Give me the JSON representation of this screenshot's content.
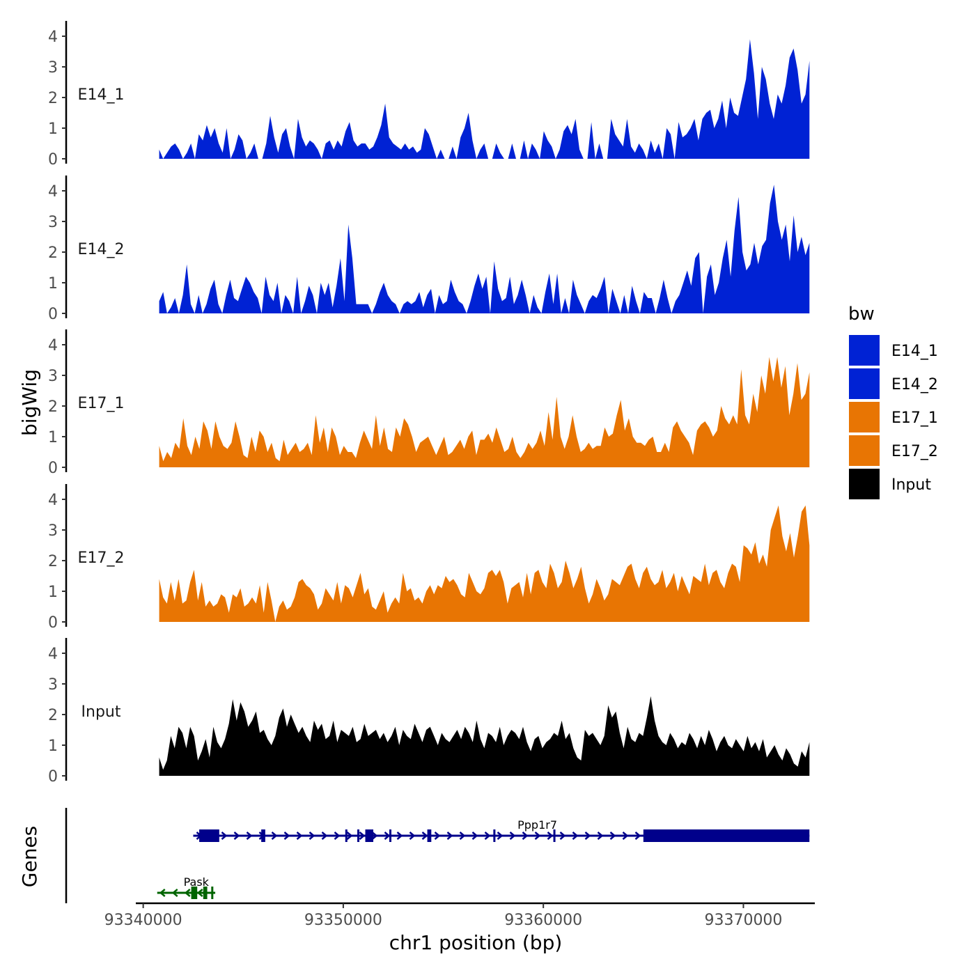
{
  "chart_data": {
    "type": "area",
    "x_range": [
      93340500,
      93373500
    ],
    "xlabel": "chr1 position (bp)",
    "ylabel": "bigWig",
    "x_ticks": [
      93340000,
      93350000,
      93360000,
      93370000
    ],
    "x_tick_labels": [
      "93340000",
      "93350000",
      "93360000",
      "93370000"
    ],
    "ylim": [
      0,
      4.5
    ],
    "y_ticks": [
      0,
      1,
      2,
      3,
      4
    ],
    "y_tick_labels": [
      "0",
      "1",
      "2",
      "3",
      "4"
    ],
    "genes_panel_label": "Genes",
    "legend": {
      "title": "bw",
      "entries": [
        {
          "label": "E14_1",
          "color": "#0022D4"
        },
        {
          "label": "E14_2",
          "color": "#0022D4"
        },
        {
          "label": "E17_1",
          "color": "#E87503"
        },
        {
          "label": "E17_2",
          "color": "#E87503"
        },
        {
          "label": "Input",
          "color": "#000000"
        }
      ]
    },
    "tracks": [
      {
        "name": "E14_1",
        "color": "#0022D4",
        "x_start": 93340800,
        "x_end": 93373300,
        "values": [
          0.3,
          0.0,
          0.2,
          0.4,
          0.5,
          0.3,
          0.0,
          0.2,
          0.5,
          0.0,
          0.8,
          0.6,
          1.1,
          0.7,
          1.0,
          0.5,
          0.2,
          1.0,
          0.0,
          0.3,
          0.8,
          0.6,
          0.0,
          0.2,
          0.5,
          0.0,
          0.0,
          0.5,
          1.4,
          0.7,
          0.2,
          0.8,
          1.0,
          0.4,
          0.0,
          1.3,
          0.7,
          0.4,
          0.6,
          0.5,
          0.3,
          0.0,
          0.5,
          0.6,
          0.3,
          0.6,
          0.4,
          0.9,
          1.2,
          0.6,
          0.4,
          0.5,
          0.5,
          0.3,
          0.4,
          0.7,
          1.1,
          1.8,
          0.7,
          0.5,
          0.4,
          0.3,
          0.5,
          0.3,
          0.4,
          0.2,
          0.3,
          1.0,
          0.8,
          0.4,
          0.0,
          0.3,
          0.0,
          0.0,
          0.4,
          0.0,
          0.7,
          1.0,
          1.5,
          0.6,
          0.0,
          0.3,
          0.5,
          0.0,
          0.0,
          0.5,
          0.2,
          0.0,
          0.0,
          0.5,
          0.0,
          0.0,
          0.6,
          0.0,
          0.5,
          0.3,
          0.0,
          0.9,
          0.6,
          0.4,
          0.0,
          0.3,
          0.9,
          1.1,
          0.8,
          1.3,
          0.3,
          0.0,
          0.0,
          1.2,
          0.0,
          0.5,
          0.0,
          0.0,
          1.3,
          0.8,
          0.6,
          0.4,
          1.3,
          0.4,
          0.2,
          0.5,
          0.3,
          0.0,
          0.6,
          0.2,
          0.5,
          0.0,
          1.0,
          0.8,
          0.0,
          1.2,
          0.7,
          0.8,
          1.0,
          1.3,
          0.6,
          1.3,
          1.5,
          1.6,
          1.0,
          1.3,
          1.9,
          1.0,
          2.0,
          1.5,
          1.4,
          2.0,
          2.6,
          3.9,
          2.8,
          1.3,
          3.0,
          2.6,
          1.8,
          1.3,
          2.1,
          1.8,
          2.4,
          3.3,
          3.6,
          2.9,
          1.8,
          2.1,
          3.2
        ]
      },
      {
        "name": "E14_2",
        "color": "#0022D4",
        "x_start": 93340800,
        "x_end": 93373300,
        "values": [
          0.4,
          0.7,
          0.0,
          0.2,
          0.5,
          0.0,
          0.6,
          1.6,
          0.3,
          0.0,
          0.6,
          0.0,
          0.3,
          0.8,
          1.1,
          0.3,
          0.0,
          0.6,
          1.1,
          0.5,
          0.4,
          0.8,
          1.2,
          1.0,
          0.7,
          0.5,
          0.0,
          1.2,
          0.6,
          0.4,
          1.0,
          0.0,
          0.6,
          0.4,
          0.0,
          1.2,
          0.0,
          0.4,
          0.9,
          0.6,
          0.0,
          1.0,
          0.6,
          1.0,
          0.2,
          0.9,
          1.8,
          0.4,
          2.9,
          1.8,
          0.3,
          0.3,
          0.3,
          0.3,
          0.0,
          0.3,
          0.7,
          1.0,
          0.6,
          0.4,
          0.3,
          0.0,
          0.3,
          0.4,
          0.3,
          0.4,
          0.7,
          0.2,
          0.6,
          0.8,
          0.0,
          0.6,
          0.3,
          0.4,
          1.1,
          0.7,
          0.4,
          0.3,
          0.0,
          0.4,
          0.9,
          1.3,
          0.8,
          1.2,
          0.0,
          1.7,
          0.8,
          0.4,
          0.5,
          1.2,
          0.3,
          0.6,
          1.1,
          0.6,
          0.0,
          0.6,
          0.2,
          0.0,
          0.7,
          1.3,
          0.3,
          1.3,
          0.0,
          0.5,
          0.0,
          1.1,
          0.6,
          0.3,
          0.0,
          0.4,
          0.6,
          0.5,
          0.8,
          1.2,
          0.0,
          0.8,
          0.4,
          0.0,
          0.6,
          0.0,
          0.9,
          0.4,
          0.0,
          0.7,
          0.5,
          0.5,
          0.0,
          0.5,
          1.1,
          0.5,
          0.0,
          0.4,
          0.6,
          1.0,
          1.4,
          0.9,
          1.8,
          2.0,
          0.0,
          1.2,
          1.6,
          0.6,
          1.0,
          1.8,
          2.4,
          1.2,
          2.7,
          3.8,
          2.0,
          1.4,
          1.6,
          2.3,
          1.6,
          2.2,
          2.4,
          3.6,
          4.2,
          3.0,
          2.4,
          2.9,
          1.7,
          3.2,
          2.0,
          2.5,
          1.9,
          2.3
        ]
      },
      {
        "name": "E17_1",
        "color": "#E87503",
        "x_start": 93340800,
        "x_end": 93373300,
        "values": [
          0.7,
          0.2,
          0.5,
          0.3,
          0.8,
          0.6,
          1.6,
          0.7,
          0.4,
          1.0,
          0.6,
          1.5,
          1.2,
          0.6,
          1.5,
          1.0,
          0.7,
          0.6,
          0.8,
          1.5,
          1.0,
          0.4,
          0.3,
          1.0,
          0.5,
          1.2,
          1.0,
          0.5,
          0.8,
          0.3,
          0.2,
          0.9,
          0.4,
          0.6,
          0.8,
          0.5,
          0.6,
          0.8,
          0.4,
          1.7,
          0.8,
          1.3,
          0.5,
          1.3,
          1.0,
          0.4,
          0.7,
          0.5,
          0.5,
          0.3,
          0.8,
          1.2,
          0.9,
          0.6,
          1.7,
          0.7,
          1.3,
          0.6,
          0.5,
          1.3,
          1.0,
          1.6,
          1.4,
          1.0,
          0.5,
          0.8,
          0.9,
          1.0,
          0.7,
          0.4,
          0.7,
          1.0,
          0.4,
          0.5,
          0.7,
          0.9,
          0.6,
          1.0,
          1.2,
          0.4,
          0.9,
          0.9,
          1.1,
          0.8,
          1.3,
          0.9,
          0.5,
          0.6,
          1.0,
          0.5,
          0.3,
          0.5,
          0.8,
          0.6,
          0.8,
          1.2,
          0.7,
          1.8,
          0.9,
          2.3,
          1.0,
          0.6,
          1.0,
          1.7,
          1.0,
          0.5,
          0.6,
          0.8,
          0.6,
          0.7,
          0.7,
          1.3,
          1.0,
          1.1,
          1.7,
          2.2,
          1.2,
          1.6,
          1.0,
          0.8,
          0.8,
          0.7,
          0.9,
          1.0,
          0.5,
          0.5,
          0.8,
          0.5,
          1.3,
          1.5,
          1.2,
          1.0,
          0.8,
          0.4,
          1.2,
          1.4,
          1.5,
          1.3,
          1.0,
          1.2,
          2.0,
          1.6,
          1.4,
          1.7,
          1.4,
          3.2,
          1.7,
          1.4,
          2.4,
          1.8,
          3.0,
          2.4,
          3.6,
          2.8,
          3.6,
          2.6,
          3.3,
          1.7,
          2.4,
          3.4,
          2.2,
          2.4,
          3.1
        ]
      },
      {
        "name": "E17_2",
        "color": "#E87503",
        "x_start": 93340800,
        "x_end": 93373300,
        "values": [
          1.4,
          0.8,
          0.6,
          1.3,
          0.7,
          1.4,
          0.6,
          0.7,
          1.3,
          1.7,
          0.7,
          1.3,
          0.5,
          0.7,
          0.5,
          0.6,
          0.9,
          0.8,
          0.3,
          0.9,
          0.8,
          1.1,
          0.5,
          0.6,
          0.8,
          0.6,
          1.2,
          0.3,
          1.3,
          0.7,
          0.0,
          0.5,
          0.7,
          0.4,
          0.5,
          0.8,
          1.3,
          1.4,
          1.2,
          1.1,
          0.9,
          0.4,
          0.6,
          1.1,
          0.9,
          0.7,
          1.3,
          0.6,
          1.2,
          1.1,
          0.8,
          1.2,
          1.6,
          0.9,
          1.1,
          0.5,
          0.4,
          0.7,
          1.0,
          0.3,
          0.6,
          0.8,
          0.6,
          1.6,
          1.0,
          1.1,
          0.7,
          0.8,
          0.6,
          1.0,
          1.2,
          0.9,
          1.2,
          1.1,
          1.5,
          1.3,
          1.4,
          1.2,
          0.9,
          0.8,
          1.6,
          1.3,
          1.0,
          0.9,
          1.1,
          1.6,
          1.7,
          1.5,
          1.7,
          1.3,
          0.6,
          1.1,
          1.2,
          1.3,
          0.8,
          1.6,
          0.9,
          1.6,
          1.7,
          1.3,
          1.1,
          1.9,
          1.6,
          1.1,
          1.3,
          2.0,
          1.6,
          1.1,
          1.4,
          1.8,
          1.1,
          0.6,
          0.9,
          1.4,
          1.1,
          0.7,
          0.9,
          1.4,
          1.3,
          1.2,
          1.5,
          1.8,
          1.9,
          1.4,
          1.1,
          1.6,
          1.8,
          1.4,
          1.2,
          1.3,
          1.7,
          1.1,
          1.3,
          1.6,
          1.0,
          1.5,
          1.2,
          0.9,
          1.5,
          1.4,
          1.3,
          1.9,
          1.2,
          1.6,
          1.7,
          1.3,
          1.1,
          1.6,
          1.9,
          1.8,
          1.3,
          2.5,
          2.4,
          2.2,
          2.6,
          1.9,
          2.2,
          1.8,
          3.0,
          3.4,
          3.8,
          2.8,
          2.3,
          2.9,
          2.1,
          2.8,
          3.6,
          3.8,
          2.5
        ]
      },
      {
        "name": "Input",
        "color": "#000000",
        "x_start": 93340800,
        "x_end": 93373300,
        "values": [
          0.6,
          0.2,
          0.5,
          1.3,
          0.9,
          1.6,
          1.4,
          0.9,
          1.6,
          1.3,
          0.5,
          0.8,
          1.2,
          0.6,
          1.6,
          1.1,
          0.9,
          1.2,
          1.7,
          2.5,
          1.8,
          2.4,
          2.1,
          1.6,
          1.8,
          2.1,
          1.4,
          1.5,
          1.2,
          1.0,
          1.3,
          1.9,
          2.2,
          1.6,
          2.0,
          1.7,
          1.4,
          1.6,
          1.3,
          1.1,
          1.8,
          1.5,
          1.7,
          1.2,
          1.3,
          1.8,
          1.1,
          1.5,
          1.4,
          1.3,
          1.6,
          1.1,
          1.2,
          1.7,
          1.3,
          1.4,
          1.5,
          1.2,
          1.4,
          1.1,
          1.3,
          1.6,
          1.0,
          1.5,
          1.3,
          1.2,
          1.7,
          1.4,
          1.1,
          1.5,
          1.6,
          1.3,
          1.0,
          1.4,
          1.2,
          1.1,
          1.3,
          1.5,
          1.2,
          1.6,
          1.4,
          1.1,
          1.8,
          1.2,
          0.9,
          1.4,
          1.3,
          1.1,
          1.6,
          1.0,
          1.3,
          1.5,
          1.4,
          1.2,
          1.6,
          1.1,
          0.8,
          1.2,
          1.3,
          0.9,
          1.1,
          1.2,
          1.4,
          1.3,
          1.8,
          1.2,
          1.4,
          0.9,
          0.6,
          0.5,
          1.5,
          1.3,
          1.4,
          1.2,
          1.0,
          1.3,
          2.3,
          1.9,
          2.1,
          1.4,
          0.9,
          1.6,
          1.2,
          1.1,
          1.4,
          1.3,
          1.9,
          2.6,
          1.8,
          1.3,
          1.1,
          1.0,
          1.4,
          1.2,
          0.9,
          1.1,
          1.0,
          1.4,
          1.2,
          0.9,
          1.3,
          1.0,
          1.5,
          1.2,
          0.8,
          1.1,
          1.3,
          1.0,
          0.9,
          1.2,
          1.0,
          0.8,
          1.3,
          0.9,
          1.1,
          0.8,
          1.2,
          0.6,
          0.8,
          1.0,
          0.7,
          0.5,
          0.9,
          0.7,
          0.4,
          0.3,
          0.8,
          0.6,
          1.1
        ]
      }
    ],
    "genes": [
      {
        "name": "Ppp1r7",
        "strand": "+",
        "color": "#00008B",
        "start": 93342500,
        "end": 93373300,
        "exons": [
          [
            93342800,
            93343800
          ],
          [
            93345900,
            93346100
          ],
          [
            93350100,
            93350200
          ],
          [
            93350700,
            93350800
          ],
          [
            93351100,
            93351500
          ],
          [
            93352300,
            93352400
          ],
          [
            93354200,
            93354400
          ],
          [
            93357500,
            93357600
          ],
          [
            93360500,
            93360600
          ],
          [
            93365000,
            93373300
          ]
        ]
      },
      {
        "name": "Pask",
        "strand": "-",
        "color": "#006400",
        "start": 93340700,
        "end": 93343600,
        "exons": [
          [
            93342400,
            93342700
          ],
          [
            93343000,
            93343200
          ],
          [
            93343400,
            93343500
          ]
        ]
      }
    ]
  }
}
